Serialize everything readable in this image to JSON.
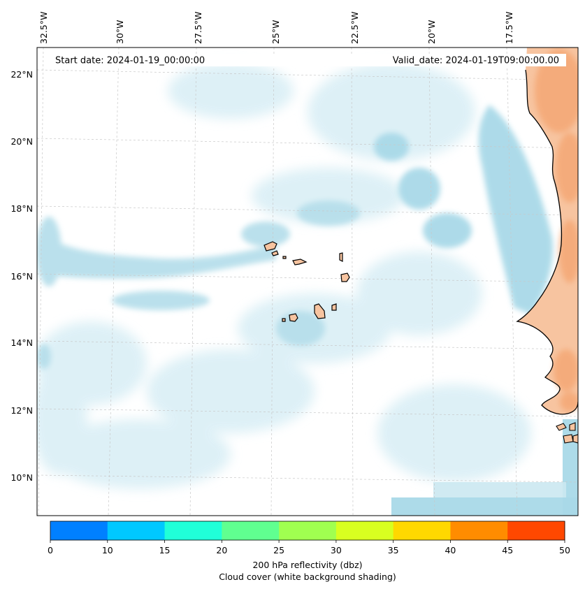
{
  "map": {
    "start_date": "Start date: 2024-01-19_00:00:00",
    "valid_date": "Valid_date: 2024-01-19T09:00:00.00",
    "top_axis_labels": [
      "32.5°W",
      "30°W",
      "27.5°W",
      "25°W",
      "22.5°W",
      "20°W",
      "17.5°W"
    ],
    "left_axis_labels": [
      "22°N",
      "20°N",
      "18°N",
      "16°N",
      "14°N",
      "12°N",
      "10°N"
    ],
    "colors": {
      "cloud": "#a9d9e8",
      "land_fill": "#f7c4a0",
      "land_hot": "#f4a672",
      "coast": "#000000",
      "grid": "#c8c8c8"
    }
  },
  "colorbar": {
    "tick_labels": [
      "0",
      "10",
      "15",
      "20",
      "25",
      "30",
      "35",
      "40",
      "45",
      "50"
    ],
    "colors": [
      "#0080ff",
      "#00c8ff",
      "#20ffd8",
      "#60ff90",
      "#a0ff50",
      "#d8ff20",
      "#ffd800",
      "#ff8c00",
      "#ff4800"
    ],
    "label_line1": "200 hPa reflectivity (dbz)",
    "label_line2": "Cloud cover (white background shading)"
  }
}
